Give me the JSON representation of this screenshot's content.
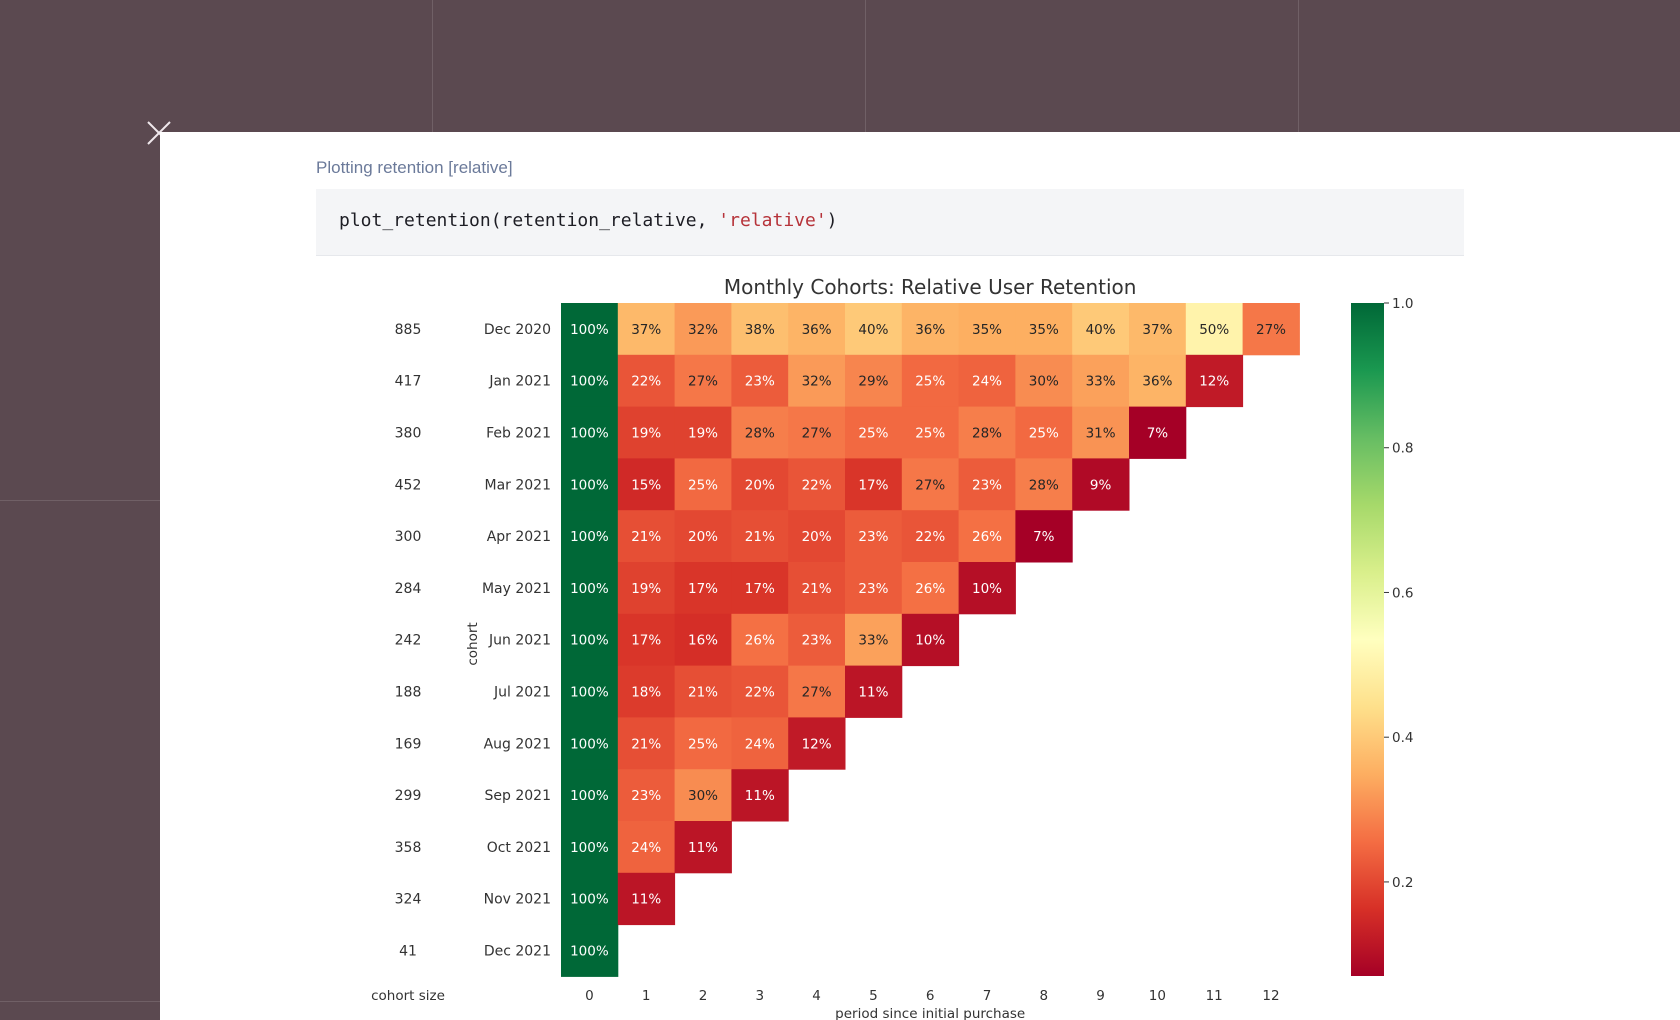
{
  "notebook": {
    "cell_label": "Plotting retention [relative]",
    "code": {
      "prefix": "plot_retention(retention_relative, ",
      "string_arg": "'relative'",
      "suffix": ")"
    }
  },
  "colors": {
    "background": "#5b4950",
    "panel": "#ffffff",
    "code_bg": "#f4f5f7",
    "code_string": "#b6333a",
    "label": "#6b7a9a"
  },
  "chart_data": {
    "type": "heatmap",
    "title": "Monthly Cohorts: Relative User Retention",
    "xlabel": "period since initial purchase",
    "ylabel": "cohort",
    "cohort_size_label": "cohort size",
    "colormap": "RdYlGn",
    "value_range": [
      0.07,
      1.0
    ],
    "periods": [
      "0",
      "1",
      "2",
      "3",
      "4",
      "5",
      "6",
      "7",
      "8",
      "9",
      "10",
      "11",
      "12"
    ],
    "cohorts": [
      "Dec 2020",
      "Jan 2021",
      "Feb 2021",
      "Mar 2021",
      "Apr 2021",
      "May 2021",
      "Jun 2021",
      "Jul 2021",
      "Aug 2021",
      "Sep 2021",
      "Oct 2021",
      "Nov 2021",
      "Dec 2021"
    ],
    "cohort_sizes": [
      "885",
      "417",
      "380",
      "452",
      "300",
      "284",
      "242",
      "188",
      "169",
      "299",
      "358",
      "324",
      "41"
    ],
    "values": [
      [
        100,
        37,
        32,
        38,
        36,
        40,
        36,
        35,
        35,
        40,
        37,
        50,
        27
      ],
      [
        100,
        22,
        27,
        23,
        32,
        29,
        25,
        24,
        30,
        33,
        36,
        12
      ],
      [
        100,
        19,
        19,
        28,
        27,
        25,
        25,
        28,
        25,
        31,
        7
      ],
      [
        100,
        15,
        25,
        20,
        22,
        17,
        27,
        23,
        28,
        9
      ],
      [
        100,
        21,
        20,
        21,
        20,
        23,
        22,
        26,
        7
      ],
      [
        100,
        19,
        17,
        17,
        21,
        23,
        26,
        10
      ],
      [
        100,
        17,
        16,
        26,
        23,
        33,
        10
      ],
      [
        100,
        18,
        21,
        22,
        27,
        11
      ],
      [
        100,
        21,
        25,
        24,
        12
      ],
      [
        100,
        23,
        30,
        11
      ],
      [
        100,
        24,
        11
      ],
      [
        100,
        11
      ],
      [
        100
      ]
    ],
    "colorbar": {
      "ticks": [
        1.0,
        0.8,
        0.6,
        0.4,
        0.2
      ],
      "tick_labels": [
        "1.0",
        "0.8",
        "0.6",
        "0.4",
        "0.2"
      ]
    }
  }
}
